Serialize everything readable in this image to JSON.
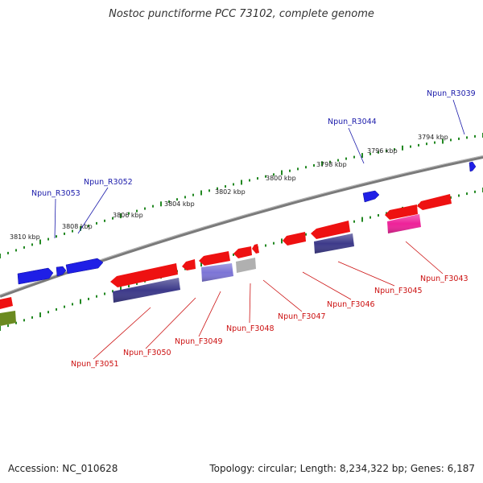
{
  "title": "Nostoc punctiforme PCC 73102, complete genome",
  "footer": {
    "accession": "Accession: NC_010628",
    "summary": "Topology: circular; Length: 8,234,322 bp; Genes: 6,187"
  },
  "colors": {
    "reverse_gene": "#1a1aee",
    "forward_gene": "#ee1111",
    "forward_rna_dark": "#3d3a8a",
    "forward_rna_light": "#7c74d6",
    "grey_gene": "#aaaaaa",
    "pink_gene": "#ee2299",
    "olive_gene": "#6a8a20",
    "backbone": "#888888",
    "ruler_outer": "#228822",
    "ruler_inner": "#228822",
    "reverse_label": "#1a1aaa",
    "forward_label": "#cc1111"
  },
  "ruler_ticks": [
    {
      "label": "3794 kbp"
    },
    {
      "label": "3796 kbp"
    },
    {
      "label": "3798 kbp"
    },
    {
      "label": "3800 kbp"
    },
    {
      "label": "3802 kbp"
    },
    {
      "label": "3804 kbp"
    },
    {
      "label": "3806 kbp"
    },
    {
      "label": "3808 kbp"
    },
    {
      "label": "3810 kbp"
    }
  ],
  "reverse_labels": [
    "Npun_R3039",
    "Npun_R3044",
    "Npun_R3052",
    "Npun_R3053"
  ],
  "forward_labels": [
    "Npun_F3043",
    "Npun_F3045",
    "Npun_F3046",
    "Npun_F3047",
    "Npun_F3048",
    "Npun_F3049",
    "Npun_F3050",
    "Npun_F3051"
  ]
}
